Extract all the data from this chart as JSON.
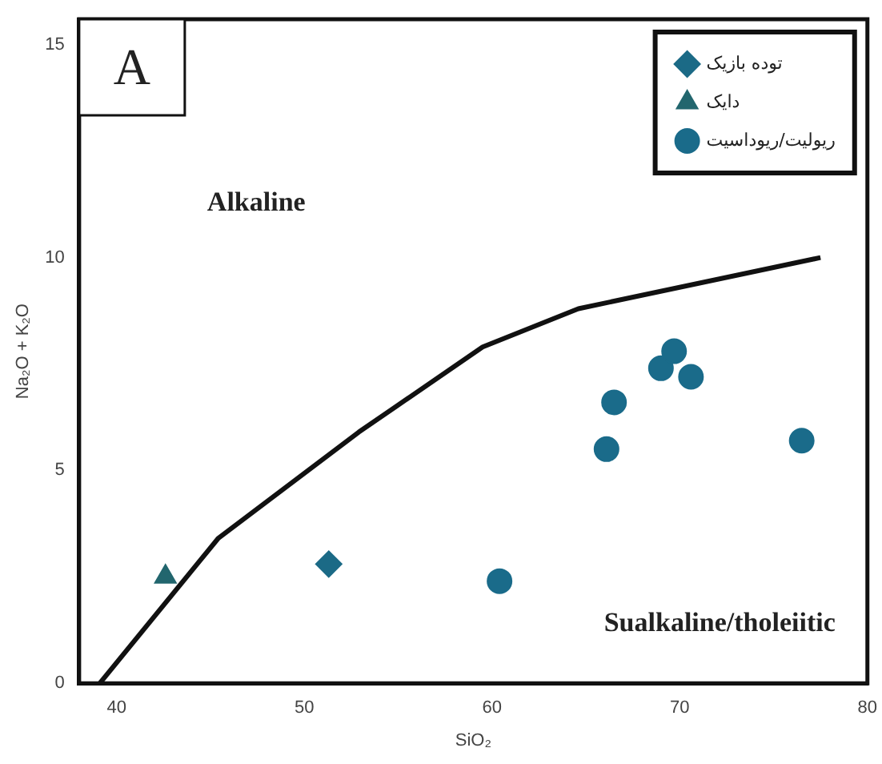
{
  "chart_data": {
    "type": "scatter",
    "xlabel": "SiO₂",
    "ylabel": "Na₂O + K₂O",
    "xlim": [
      38,
      80
    ],
    "ylim": [
      0,
      15.6
    ],
    "xticks": [
      40,
      50,
      60,
      70,
      80
    ],
    "yticks": [
      0,
      5,
      10,
      15
    ],
    "grid": false,
    "legend": "top right",
    "annotations": [
      "A",
      "Alkaline",
      "Sualkaline/tholeiitic"
    ],
    "series": [
      {
        "name": "توده بازیک",
        "marker": "diamond",
        "color": "#1b6a86",
        "x": [
          51.3
        ],
        "values": [
          2.8
        ]
      },
      {
        "name": "دایک",
        "marker": "triangle",
        "color": "#22666e",
        "x": [
          42.6
        ],
        "values": [
          2.5
        ]
      },
      {
        "name": "ریولیت/ریوداسیت",
        "marker": "circle",
        "color": "#1a6b8a",
        "x": [
          60.4,
          66.5,
          66.1,
          76.5,
          69.0,
          69.7,
          70.6
        ],
        "values": [
          2.4,
          6.6,
          5.5,
          5.7,
          7.4,
          7.8,
          7.2
        ]
      },
      {
        "type": "line",
        "marker": "none",
        "line_style": "solid",
        "color": "#111111",
        "x": [
          39.1,
          45.4,
          52.9,
          59.5,
          64.6,
          77.5
        ],
        "values": [
          0,
          3.4,
          5.9,
          7.9,
          8.8,
          10.0
        ]
      }
    ]
  }
}
